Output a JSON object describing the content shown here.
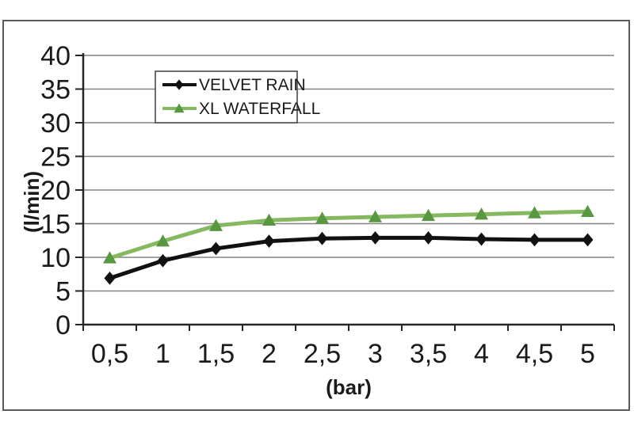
{
  "chart_data": {
    "type": "line",
    "title": "",
    "xlabel": "(bar)",
    "ylabel": "(l/min)",
    "categories": [
      "0,5",
      "1",
      "1,5",
      "2",
      "2,5",
      "3",
      "3,5",
      "4",
      "4,5",
      "5"
    ],
    "x_values": [
      0.5,
      1,
      1.5,
      2,
      2.5,
      3,
      3.5,
      4,
      4.5,
      5
    ],
    "series": [
      {
        "name": "VELVET RAIN",
        "values": [
          6.9,
          9.5,
          11.3,
          12.4,
          12.8,
          12.9,
          12.9,
          12.7,
          12.6,
          12.6
        ],
        "line_color": "#111111",
        "marker_color": "#111111",
        "marker": "diamond"
      },
      {
        "name": "XL WATERFALL",
        "values": [
          9.9,
          12.4,
          14.7,
          15.5,
          15.8,
          16.0,
          16.2,
          16.4,
          16.6,
          16.8
        ],
        "line_color": "#85b95f",
        "marker_color": "#579840",
        "marker": "triangle"
      }
    ],
    "ylim": [
      0,
      40
    ],
    "ytick_step": 5,
    "yticks": [
      "0",
      "5",
      "10",
      "15",
      "20",
      "25",
      "30",
      "35",
      "40"
    ],
    "grid": true,
    "legend_position": "top-center-inside"
  },
  "colors": {
    "frame_border": "#58595b",
    "gridline": "#848484",
    "axis": "#262626",
    "background": "#ffffff",
    "text": "#1a1a1a"
  }
}
